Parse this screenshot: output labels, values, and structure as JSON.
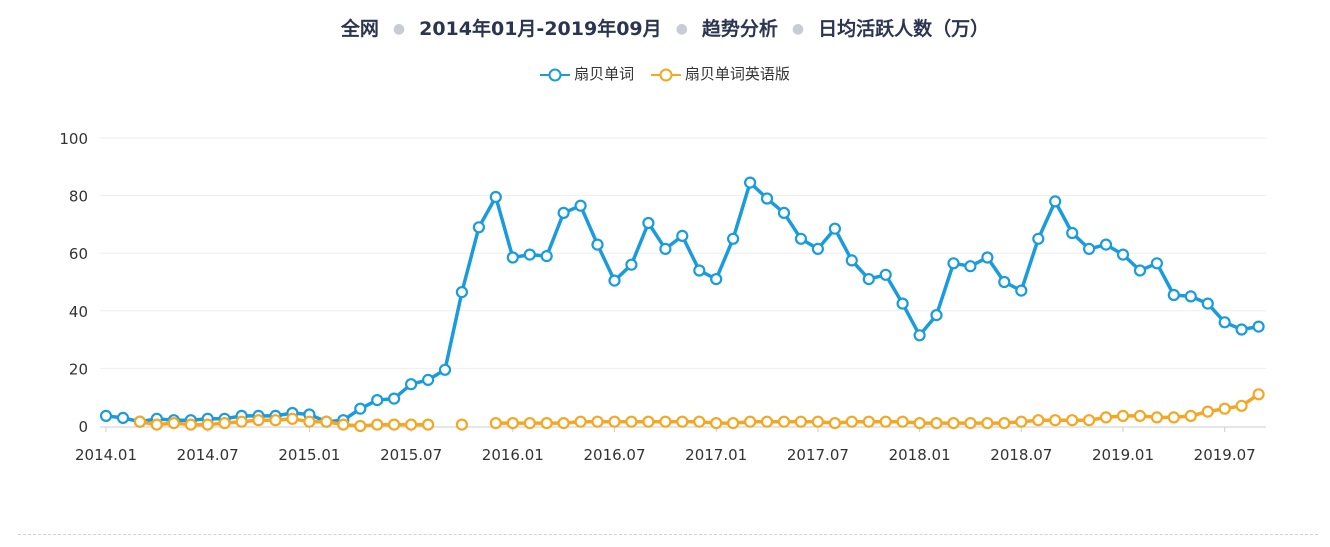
{
  "title": {
    "parts": [
      "全网",
      "2014年01月-2019年09月",
      "趋势分析",
      "日均活跃人数（万）"
    ]
  },
  "colors": {
    "series_1": "#1a9bdc",
    "series_2": "#f5a623",
    "grid": "#eeeeee",
    "axis_text": "#333333"
  },
  "chart_data": {
    "type": "line",
    "title": "全网 · 2014年01月-2019年09月 · 趋势分析 · 日均活跃人数（万）",
    "xlabel": "",
    "ylabel": "",
    "ylim": [
      0,
      100
    ],
    "yticks": [
      "0",
      "20",
      "40",
      "60",
      "80",
      "100"
    ],
    "xticks": [
      {
        "label": "2014.01",
        "index": 0
      },
      {
        "label": "2014.07",
        "index": 6
      },
      {
        "label": "2015.01",
        "index": 12
      },
      {
        "label": "2015.07",
        "index": 18
      },
      {
        "label": "2016.01",
        "index": 24
      },
      {
        "label": "2016.07",
        "index": 30
      },
      {
        "label": "2017.01",
        "index": 36
      },
      {
        "label": "2017.07",
        "index": 42
      },
      {
        "label": "2018.01",
        "index": 48
      },
      {
        "label": "2018.07",
        "index": 54
      },
      {
        "label": "2019.01",
        "index": 60
      },
      {
        "label": "2019.07",
        "index": 66
      }
    ],
    "x_start": "2014.01",
    "x_end": "2019.09",
    "legend_position": "top-center",
    "grid": true,
    "series": [
      {
        "name": "扇贝单词",
        "values": [
          3.5,
          2.8,
          1.5,
          2.5,
          2.0,
          2.0,
          2.5,
          2.5,
          3.5,
          3.5,
          3.5,
          4.5,
          4.0,
          1.5,
          2.0,
          6.0,
          9.0,
          9.5,
          14.5,
          16.0,
          19.5,
          46.5,
          69.0,
          79.5,
          58.5,
          59.5,
          59.0,
          74.0,
          76.5,
          63.0,
          50.5,
          56.0,
          70.5,
          61.5,
          66.0,
          54.0,
          51.0,
          65.0,
          84.5,
          79.0,
          74.0,
          65.0,
          61.5,
          68.5,
          57.5,
          51.0,
          52.5,
          42.5,
          31.5,
          38.5,
          56.5,
          55.5,
          58.5,
          50.0,
          47.0,
          65.0,
          78.0,
          67.0,
          61.5,
          63.0,
          59.5,
          54.0,
          56.5,
          45.5,
          45.0,
          42.5,
          36.0,
          33.5,
          34.5
        ]
      },
      {
        "name": "扇贝单词英语版",
        "values": [
          null,
          null,
          1.5,
          0.5,
          1.0,
          0.5,
          0.5,
          1.0,
          1.5,
          2.0,
          2.0,
          2.5,
          1.5,
          1.5,
          0.5,
          0.0,
          0.5,
          0.5,
          0.5,
          0.5,
          null,
          0.5,
          null,
          1.0,
          1.0,
          1.0,
          1.0,
          1.0,
          1.5,
          1.5,
          1.5,
          1.5,
          1.5,
          1.5,
          1.5,
          1.5,
          1.0,
          1.0,
          1.5,
          1.5,
          1.5,
          1.5,
          1.5,
          1.0,
          1.5,
          1.5,
          1.5,
          1.5,
          1.0,
          1.0,
          1.0,
          1.0,
          1.0,
          1.0,
          1.5,
          2.0,
          2.0,
          2.0,
          2.0,
          3.0,
          3.5,
          3.5,
          3.0,
          3.0,
          3.5,
          5.0,
          6.0,
          7.0,
          11.0
        ]
      }
    ]
  }
}
